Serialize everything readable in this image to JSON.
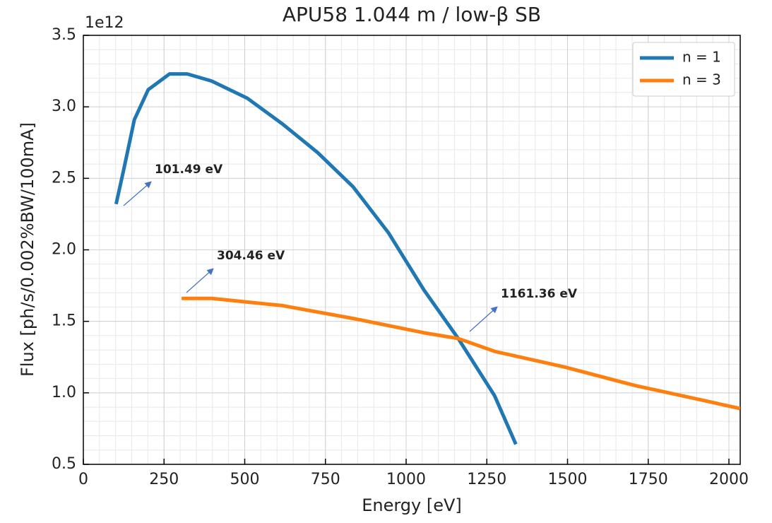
{
  "chart_data": {
    "type": "line",
    "title": "APU58 1.044 m / low-β SB",
    "x_label": "Energy [eV]",
    "y_label": "Flux [ph/s/0.002%BW/100mA]",
    "y_offset_label": "1e12",
    "series": [
      {
        "name": "n = 1",
        "color": "#1f77b4",
        "x": [
          101.49,
          125,
          158,
          201,
          267,
          322,
          398,
          508,
          617,
          726,
          836,
          945,
          1055,
          1161.36,
          1274,
          1340
        ],
        "values": [
          2.32,
          2.56,
          2.91,
          3.12,
          3.23,
          3.23,
          3.18,
          3.06,
          2.88,
          2.68,
          2.44,
          2.12,
          1.72,
          1.38,
          0.98,
          0.64
        ]
      },
      {
        "name": "n = 3",
        "color": "#ff7f0e",
        "x": [
          304.46,
          398,
          617,
          836,
          1055,
          1161.36,
          1274,
          1492,
          1711,
          1935,
          2035
        ],
        "values": [
          1.66,
          1.66,
          1.61,
          1.52,
          1.42,
          1.38,
          1.29,
          1.18,
          1.05,
          0.94,
          0.89
        ]
      }
    ],
    "annotations": [
      "101.49 eV",
      "304.46 eV",
      "1161.36 eV"
    ],
    "xlim": [
      0,
      2035
    ],
    "xticks": [
      0,
      250,
      500,
      750,
      1000,
      1250,
      1500,
      1750,
      2000
    ],
    "ylim": [
      0.5,
      3.5
    ],
    "yticks": [
      0.5,
      {
        "value": 1,
        "label": "1.0"
      },
      1.5,
      {
        "value": 2,
        "label": "2.0"
      },
      2.5,
      {
        "value": 3,
        "label": "3.0"
      },
      3.5
    ],
    "grid": true,
    "legend": "upper right"
  }
}
